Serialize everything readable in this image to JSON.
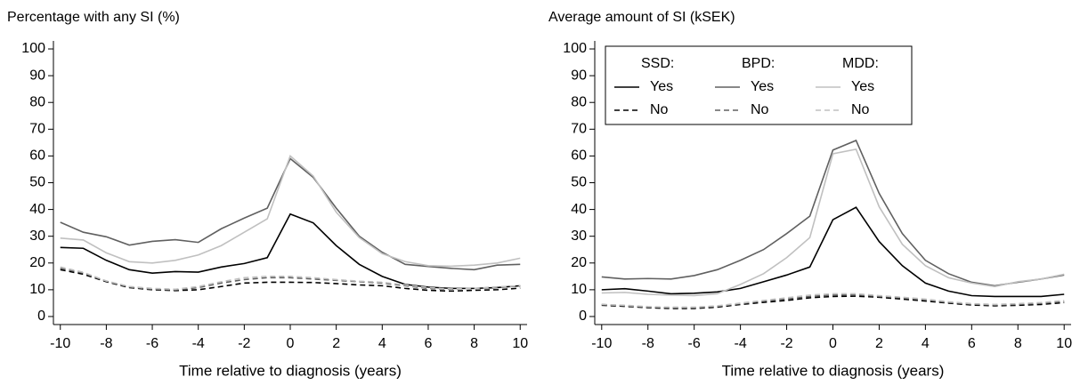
{
  "chart_data": [
    {
      "type": "line",
      "title": "Percentage with any SI (%)",
      "xlabel": "Time relative to diagnosis (years)",
      "x": [
        -10,
        -9,
        -8,
        -7,
        -6,
        -5,
        -4,
        -3,
        -2,
        -1,
        0,
        1,
        2,
        3,
        4,
        5,
        6,
        7,
        8,
        9,
        10
      ],
      "xlim": [
        -10.3,
        10.3
      ],
      "xticks": [
        -10,
        -8,
        -6,
        -4,
        -2,
        0,
        2,
        4,
        6,
        8,
        10
      ],
      "ylim": [
        -3,
        103
      ],
      "yticks": [
        0,
        10,
        20,
        30,
        40,
        50,
        60,
        70,
        80,
        90,
        100
      ],
      "series": [
        {
          "color": "#000000",
          "dash": false,
          "values": [
            25.8,
            25.5,
            21,
            17.5,
            16.2,
            16.8,
            16.6,
            18.5,
            19.8,
            22,
            38.3,
            35,
            26.5,
            19.5,
            15,
            12,
            11,
            10.5,
            10.5,
            10.8,
            11.5
          ]
        },
        {
          "color": "#000000",
          "dash": true,
          "values": [
            17.5,
            15.8,
            13,
            10.8,
            10,
            9.7,
            10,
            11.2,
            12.5,
            12.8,
            12.8,
            12.7,
            12.3,
            11.8,
            11.5,
            10.5,
            9.8,
            9.5,
            9.8,
            10,
            10.6
          ]
        },
        {
          "color": "#606060",
          "dash": false,
          "values": [
            35.2,
            31.5,
            29.8,
            26.7,
            28.1,
            28.7,
            27.7,
            32.8,
            36.8,
            40.5,
            59,
            52,
            40.5,
            30,
            24,
            19.5,
            18.7,
            18,
            17.5,
            19.2,
            19.5
          ]
        },
        {
          "color": "#606060",
          "dash": true,
          "values": [
            18,
            16.3,
            13.2,
            11,
            10.2,
            9.9,
            10.8,
            12.5,
            13.8,
            14.5,
            14.5,
            14,
            13.5,
            13,
            12.5,
            11.5,
            10.5,
            10.2,
            10.5,
            11,
            11.3
          ]
        },
        {
          "color": "#c0c0c0",
          "dash": false,
          "values": [
            29.3,
            28.6,
            23.8,
            20.5,
            20,
            21,
            23,
            26.5,
            31.5,
            36.5,
            60,
            52.5,
            39,
            29.5,
            23.5,
            20.5,
            19,
            18.8,
            19.2,
            20,
            21.8
          ]
        },
        {
          "color": "#c0c0c0",
          "dash": true,
          "values": [
            18.5,
            16.5,
            13.3,
            11.2,
            10.5,
            10.2,
            11.2,
            13,
            14.5,
            15,
            15,
            14.5,
            13.8,
            13.2,
            12.8,
            11.8,
            10.8,
            10.3,
            10.5,
            11,
            11.5
          ]
        }
      ]
    },
    {
      "type": "line",
      "title": "Average amount of SI (kSEK)",
      "xlabel": "Time relative to diagnosis (years)",
      "x": [
        -10,
        -9,
        -8,
        -7,
        -6,
        -5,
        -4,
        -3,
        -2,
        -1,
        0,
        1,
        2,
        3,
        4,
        5,
        6,
        7,
        8,
        9,
        10
      ],
      "xlim": [
        -10.3,
        10.3
      ],
      "xticks": [
        -10,
        -8,
        -6,
        -4,
        -2,
        0,
        2,
        4,
        6,
        8,
        10
      ],
      "ylim": [
        -3,
        103
      ],
      "yticks": [
        0,
        10,
        20,
        30,
        40,
        50,
        60,
        70,
        80,
        90,
        100
      ],
      "legend": {
        "corner": "top-left",
        "columns": [
          "SSD:",
          "BPD:",
          "MDD:"
        ],
        "rows": [
          "Yes",
          "No"
        ]
      },
      "series": [
        {
          "color": "#000000",
          "dash": false,
          "values": [
            10,
            10.4,
            9.5,
            8.5,
            8.7,
            9.2,
            10.5,
            13,
            15.5,
            18.5,
            36.2,
            40.8,
            28,
            19,
            12.5,
            9.5,
            7.8,
            7.5,
            7.5,
            7.5,
            8.3
          ]
        },
        {
          "color": "#000000",
          "dash": true,
          "values": [
            4.2,
            3.8,
            3.3,
            3,
            3,
            3.5,
            4.5,
            5.3,
            6,
            7,
            7.5,
            7.6,
            7.2,
            6.5,
            5.8,
            5,
            4.3,
            4,
            4.2,
            4.5,
            5.2
          ]
        },
        {
          "color": "#606060",
          "dash": false,
          "values": [
            14.8,
            14,
            14.2,
            14,
            15.3,
            17.5,
            21,
            25,
            31,
            37.5,
            62.2,
            65.8,
            46,
            31,
            21,
            16,
            12.8,
            11.5,
            12.8,
            14,
            15.5
          ]
        },
        {
          "color": "#606060",
          "dash": true,
          "values": [
            4.5,
            4,
            3.5,
            3.3,
            3.3,
            3.8,
            4.8,
            5.8,
            6.5,
            7.5,
            8,
            8.2,
            7.5,
            7,
            6.2,
            5.3,
            4.6,
            4.3,
            4.5,
            5,
            5.6
          ]
        },
        {
          "color": "#c0c0c0",
          "dash": false,
          "values": [
            8.8,
            9,
            8.3,
            8,
            7.8,
            8.5,
            12,
            16,
            22,
            29.5,
            60.8,
            62.5,
            41,
            27,
            19,
            14.5,
            12.5,
            11.2,
            13,
            14,
            15.8
          ]
        },
        {
          "color": "#c0c0c0",
          "dash": true,
          "values": [
            4.5,
            4.2,
            3.7,
            3.5,
            3.5,
            4,
            5,
            6,
            7,
            8,
            8.5,
            8.5,
            7.8,
            7.2,
            6.5,
            5.5,
            4.8,
            4.5,
            4.8,
            5.2,
            6
          ]
        }
      ]
    }
  ]
}
